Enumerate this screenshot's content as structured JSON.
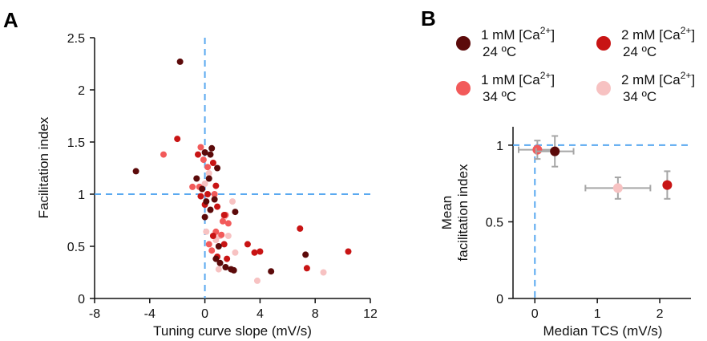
{
  "panels": {
    "a_letter": "A",
    "b_letter": "B"
  },
  "colors": {
    "c1mM_24C": "#5c0a0a",
    "c2mM_24C": "#c81414",
    "c1mM_34C": "#f25a5a",
    "c2mM_34C": "#f7c2c2",
    "ref_line": "#5aa9f0",
    "errorbar": "#a6a6a6"
  },
  "legend": {
    "items": [
      {
        "key": "c1mM_24C",
        "line1": "1 mM [Ca",
        "sup": "2+",
        "close": "]",
        "line2": "24 ºC"
      },
      {
        "key": "c2mM_24C",
        "line1": "2 mM [Ca",
        "sup": "2+",
        "close": "]",
        "line2": "24 ºC"
      },
      {
        "key": "c1mM_34C",
        "line1": "1 mM [Ca",
        "sup": "2+",
        "close": "]",
        "line2": "34 ºC"
      },
      {
        "key": "c2mM_34C",
        "line1": "2 mM [Ca",
        "sup": "2+",
        "close": "]",
        "line2": "34 ºC"
      }
    ]
  },
  "chart_data": [
    {
      "type": "scatter",
      "panel": "A",
      "xlabel": "Tuning curve slope (mV/s)",
      "ylabel": "Facilitation index",
      "xlim": [
        -8,
        12
      ],
      "ylim": [
        0,
        2.5
      ],
      "xticks": [
        "-8",
        "-4",
        "0",
        "4",
        "8",
        "12"
      ],
      "yticks": [
        "0",
        "0.5",
        "1",
        "1.5",
        "2",
        "2.5"
      ],
      "reference_lines": {
        "x": 0,
        "y": 1
      },
      "series": [
        {
          "key": "c1mM_24C",
          "points": [
            [
              -1.8,
              2.27
            ],
            [
              -5.0,
              1.22
            ],
            [
              0.0,
              1.4
            ],
            [
              0.4,
              1.38
            ],
            [
              0.5,
              1.44
            ],
            [
              0.9,
              1.25
            ],
            [
              0.3,
              1.15
            ],
            [
              -0.6,
              1.15
            ],
            [
              -0.2,
              1.05
            ],
            [
              0.1,
              0.93
            ],
            [
              0.7,
              0.95
            ],
            [
              0.0,
              0.78
            ],
            [
              0.4,
              0.85
            ],
            [
              2.2,
              0.83
            ],
            [
              1.0,
              0.5
            ],
            [
              0.8,
              0.38
            ],
            [
              1.1,
              0.34
            ],
            [
              1.5,
              0.3
            ],
            [
              1.9,
              0.28
            ],
            [
              2.1,
              0.27
            ],
            [
              4.8,
              0.26
            ],
            [
              7.3,
              0.42
            ]
          ]
        },
        {
          "key": "c2mM_24C",
          "points": [
            [
              -2.0,
              1.53
            ],
            [
              -0.5,
              1.38
            ],
            [
              0.6,
              1.3
            ],
            [
              0.8,
              1.08
            ],
            [
              -0.3,
              0.98
            ],
            [
              0.9,
              0.88
            ],
            [
              0.2,
              1.0
            ],
            [
              0.0,
              0.9
            ],
            [
              1.4,
              0.8
            ],
            [
              0.6,
              0.6
            ],
            [
              1.4,
              0.52
            ],
            [
              0.9,
              0.4
            ],
            [
              3.1,
              0.52
            ],
            [
              3.6,
              0.44
            ],
            [
              4.0,
              0.45
            ],
            [
              6.9,
              0.67
            ],
            [
              7.4,
              0.29
            ],
            [
              10.4,
              0.45
            ],
            [
              1.6,
              0.38
            ]
          ]
        },
        {
          "key": "c1mM_34C",
          "points": [
            [
              -3.0,
              1.38
            ],
            [
              -0.9,
              1.07
            ],
            [
              -0.4,
              1.07
            ],
            [
              -0.1,
              1.33
            ],
            [
              0.2,
              1.26
            ],
            [
              -0.3,
              1.45
            ],
            [
              0.7,
              1.0
            ],
            [
              1.2,
              0.61
            ],
            [
              1.3,
              0.74
            ],
            [
              1.5,
              0.8
            ],
            [
              0.3,
              0.52
            ],
            [
              0.8,
              0.64
            ],
            [
              0.5,
              0.46
            ],
            [
              1.7,
              0.72
            ]
          ]
        },
        {
          "key": "c2mM_34C",
          "points": [
            [
              0.0,
              1.1
            ],
            [
              0.1,
              0.64
            ],
            [
              2.0,
              0.93
            ],
            [
              1.4,
              0.78
            ],
            [
              1.1,
              0.6
            ],
            [
              1.7,
              0.6
            ],
            [
              0.8,
              0.56
            ],
            [
              2.2,
              0.44
            ],
            [
              1.0,
              0.28
            ],
            [
              3.8,
              0.17
            ],
            [
              8.6,
              0.25
            ],
            [
              0.3,
              1.2
            ]
          ]
        }
      ]
    },
    {
      "type": "scatter",
      "panel": "B",
      "xlabel": "Median TCS (mV/s)",
      "ylabel": [
        "Mean",
        "facilitation index"
      ],
      "xlim": [
        -0.35,
        2.5
      ],
      "ylim": [
        0,
        1.12
      ],
      "xticks": [
        "0",
        "1",
        "2"
      ],
      "yticks": [
        "0",
        "0.5",
        "1"
      ],
      "reference_lines": {
        "x": 0,
        "y": 1
      },
      "series": [
        {
          "key": "c2mM_24C",
          "x": 2.12,
          "y": 0.74,
          "xerr": 0.05,
          "yerr": 0.09
        },
        {
          "key": "c2mM_34C",
          "x": 1.33,
          "y": 0.72,
          "xerr": 0.52,
          "yerr": 0.07
        },
        {
          "key": "c1mM_34C",
          "x": 0.04,
          "y": 0.97,
          "xerr": 0.3,
          "yerr": 0.06
        },
        {
          "key": "c1mM_24C",
          "x": 0.32,
          "y": 0.96,
          "xerr": 0.3,
          "yerr": 0.1
        }
      ]
    }
  ]
}
